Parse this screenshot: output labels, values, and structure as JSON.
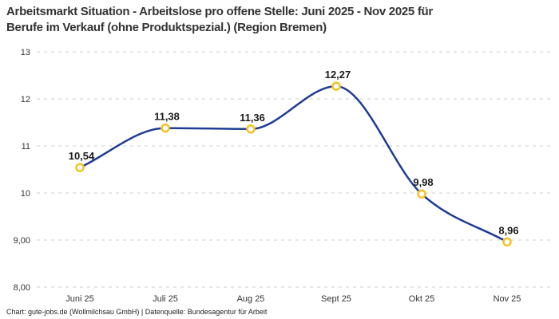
{
  "title": {
    "lines": [
      "Arbeitsmarkt Situation - Arbeitslose pro offene Stelle: Juni 2025 - Nov 2025 für",
      "Berufe im Verkauf (ohne Produktspezial.) (Region Bremen)"
    ]
  },
  "footer": {
    "credit": "Chart: gute-jobs.de (Wollmilchsau GmbH) | Datenquelle: Bundesagentur für Arbeit"
  },
  "chart_data": {
    "type": "line",
    "title": "Arbeitsmarkt Situation - Arbeitslose pro offene Stelle: Juni 2025 - Nov 2025 für Berufe im Verkauf (ohne Produktspezial.) (Region Bremen)",
    "categories": [
      "Juni 25",
      "Juli 25",
      "Aug 25",
      "Sept 25",
      "Okt 25",
      "Nov 25"
    ],
    "values": [
      10.54,
      11.38,
      11.36,
      12.27,
      9.98,
      8.96
    ],
    "value_labels": [
      "10,54",
      "11,38",
      "11,36",
      "12,27",
      "9,98",
      "8,96"
    ],
    "xlabel": "",
    "ylabel": "",
    "ylim": [
      8,
      13
    ],
    "yticks": [
      {
        "value": 13,
        "label": "13"
      },
      {
        "value": 12,
        "label": "12"
      },
      {
        "value": 11,
        "label": "11"
      },
      {
        "value": 10,
        "label": "10"
      },
      {
        "value": 9,
        "label": "9,00"
      },
      {
        "value": 8,
        "label": "8,00"
      }
    ],
    "grid": "horizontal-dashed",
    "legend": "none",
    "curve": "monotone",
    "colors": {
      "line": "#1e3c96",
      "marker_stroke": "#f5c21e",
      "marker_fill": "#ffffff",
      "grid": "#cccccc",
      "axis_text": "#333333",
      "data_label": "#1a1a1a"
    }
  }
}
